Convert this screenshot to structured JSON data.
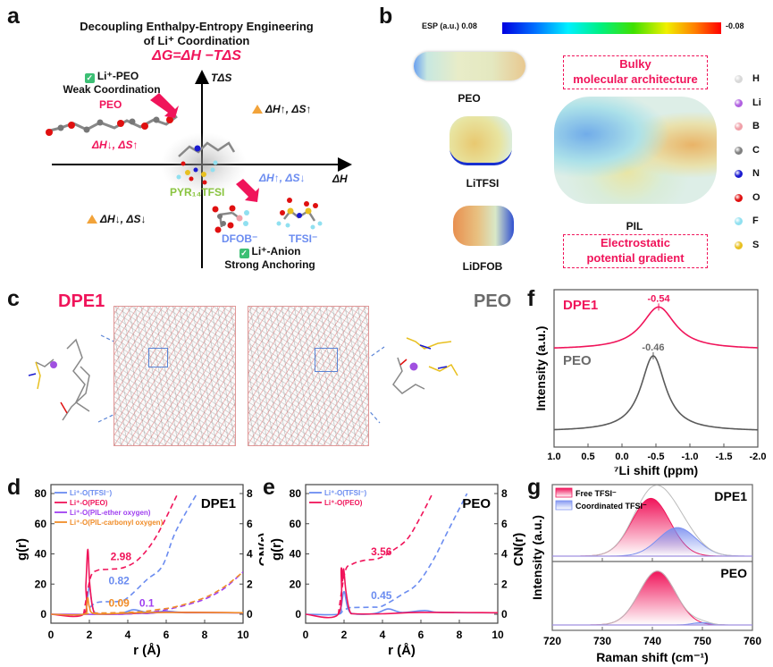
{
  "figure": {
    "panel_labels": [
      "a",
      "b",
      "c",
      "d",
      "e",
      "f",
      "g"
    ]
  },
  "panel_a": {
    "title_line1": "Decoupling Enthalpy-Entropy Engineering",
    "title_line2": "of Li⁺ Coordination",
    "equation": "ΔG=ΔH −TΔS",
    "y_axis_label": "TΔS",
    "x_axis_label": "ΔH",
    "top_left_check_label": "Li⁺-PEO",
    "top_left_sub": "Weak Coordination",
    "peo_label": "PEO",
    "q2_label": "ΔH↓, ΔS↑",
    "q1_label": "ΔH↑, ΔS↑",
    "q4_label": "ΔH↑, ΔS↓",
    "q3_label": "ΔH↓, ΔS↓",
    "center_molecule": "PYR₁₄TFSI",
    "dfob_label": "DFOB⁻",
    "tfsi_label": "TFSI⁻",
    "bottom_check_label": "Li⁺-Anion",
    "bottom_sub": "Strong Anchoring",
    "colors": {
      "magenta": "#f0145a",
      "blue": "#6b8cf0",
      "green": "#8ac440",
      "check": "#3cbf74",
      "warn": "#f2a33a"
    }
  },
  "panel_b": {
    "esp_label": "ESP (a.u.)",
    "esp_max": "0.08",
    "esp_min": "-0.08",
    "molecules": [
      "PEO",
      "LiTFSI",
      "LiDFOB",
      "PIL"
    ],
    "box_top": [
      "Bulky",
      "molecular architecture"
    ],
    "box_bottom": [
      "Electrostatic",
      "potential gradient"
    ],
    "element_legend": [
      {
        "symbol": "H",
        "color": "#d8d8d8"
      },
      {
        "symbol": "Li",
        "color": "#b060e0"
      },
      {
        "symbol": "B",
        "color": "#f0a0a8"
      },
      {
        "symbol": "C",
        "color": "#808080"
      },
      {
        "symbol": "N",
        "color": "#1a1ad0"
      },
      {
        "symbol": "O",
        "color": "#e01010"
      },
      {
        "symbol": "F",
        "color": "#90e0f0"
      },
      {
        "symbol": "S",
        "color": "#e8c020"
      }
    ]
  },
  "panel_c": {
    "left_label": "DPE1",
    "right_label": "PEO"
  },
  "chart_data": [
    {
      "id": "d",
      "type": "line",
      "title": "DPE1",
      "xlabel": "r (Å)",
      "ylabel": "g(r)",
      "y2label": "CN(r)",
      "xlim": [
        0,
        10
      ],
      "ylim": [
        0,
        80
      ],
      "y2lim": [
        0,
        8
      ],
      "xticks": [
        "0",
        "2",
        "4",
        "6",
        "8",
        "10"
      ],
      "yticks": [
        "0",
        "20",
        "40",
        "60",
        "80"
      ],
      "y2ticks": [
        "0",
        "2",
        "4",
        "6",
        "8"
      ],
      "legend": [
        "Li⁺-O(TFSI⁻)",
        "Li⁺-O(PEO)",
        "Li⁺-O(PIL-ether oxygen)",
        "Li⁺-O(PIL-carbonyl oxygen)"
      ],
      "legend_placement": "top-left",
      "series": [
        {
          "name": "Li⁺-O(TFSI⁻)",
          "color": "#6b8cf0",
          "gr": [
            [
              0,
              0
            ],
            [
              1.7,
              0
            ],
            [
              1.85,
              6
            ],
            [
              2.0,
              18
            ],
            [
              2.15,
              6
            ],
            [
              2.4,
              0.5
            ],
            [
              3.6,
              0.5
            ],
            [
              4.3,
              3
            ],
            [
              5.0,
              1.2
            ],
            [
              6.0,
              2
            ],
            [
              7,
              1.2
            ],
            [
              10,
              1
            ]
          ],
          "cn": [
            [
              1.7,
              0
            ],
            [
              2.2,
              0.65
            ],
            [
              2.6,
              0.82
            ],
            [
              3.5,
              0.85
            ],
            [
              4.0,
              1.1
            ],
            [
              5.0,
              2.3
            ],
            [
              5.8,
              3.2
            ],
            [
              6.5,
              5.5
            ],
            [
              7.6,
              8
            ]
          ]
        },
        {
          "name": "Li⁺-O(PEO)",
          "color": "#f0145a",
          "gr": [
            [
              0,
              0
            ],
            [
              1.7,
              0
            ],
            [
              1.82,
              20
            ],
            [
              1.92,
              43
            ],
            [
              2.02,
              20
            ],
            [
              2.2,
              3
            ],
            [
              2.5,
              0.3
            ],
            [
              4,
              0.3
            ],
            [
              6,
              1.3
            ],
            [
              10,
              1
            ]
          ],
          "cn": [
            [
              1.7,
              0
            ],
            [
              2.05,
              2.4
            ],
            [
              2.4,
              2.9
            ],
            [
              3.0,
              2.98
            ],
            [
              3.8,
              3.1
            ],
            [
              4.6,
              3.7
            ],
            [
              5.5,
              5.2
            ],
            [
              6.6,
              8
            ]
          ]
        },
        {
          "name": "Li⁺-O(PIL-ether oxygen)",
          "color": "#a040f0",
          "gr": [
            [
              0,
              0
            ],
            [
              3.5,
              0
            ],
            [
              4.3,
              1
            ],
            [
              5,
              0.5
            ],
            [
              6,
              1.5
            ],
            [
              7,
              1
            ],
            [
              10,
              1
            ]
          ],
          "cn": [
            [
              3.5,
              0
            ],
            [
              4.5,
              0.05
            ],
            [
              5.0,
              0.1
            ],
            [
              6,
              0.3
            ],
            [
              7,
              0.6
            ],
            [
              8,
              1.0
            ],
            [
              9,
              1.7
            ],
            [
              10,
              2.8
            ]
          ]
        },
        {
          "name": "Li⁺-O(PIL-carbonyl oxygen)",
          "color": "#f08c28",
          "gr": [
            [
              0,
              0
            ],
            [
              1.7,
              0
            ],
            [
              1.85,
              6
            ],
            [
              1.92,
              11
            ],
            [
              2.0,
              5
            ],
            [
              2.3,
              0.3
            ],
            [
              4,
              0.8
            ],
            [
              6,
              1.2
            ],
            [
              10,
              1
            ]
          ],
          "cn": [
            [
              1.7,
              0
            ],
            [
              2.3,
              0.08
            ],
            [
              3.0,
              0.09
            ],
            [
              4.5,
              0.15
            ],
            [
              5.5,
              0.3
            ],
            [
              6.5,
              0.5
            ],
            [
              8,
              1.1
            ],
            [
              9,
              1.8
            ],
            [
              10,
              2.8
            ]
          ]
        }
      ],
      "annotations": [
        {
          "text": "2.98",
          "x": 3.1,
          "y": 36,
          "color": "#f0145a"
        },
        {
          "text": "0.82",
          "x": 3.0,
          "y": 20,
          "color": "#6b8cf0"
        },
        {
          "text": "0.09",
          "x": 3.0,
          "y": 5,
          "color": "#f08c28"
        },
        {
          "text": "0.1",
          "x": 4.6,
          "y": 5,
          "color": "#a040f0"
        }
      ]
    },
    {
      "id": "e",
      "type": "line",
      "title": "PEO",
      "xlabel": "r (Å)",
      "ylabel": "g(r)",
      "y2label": "CN(r)",
      "xlim": [
        0,
        10
      ],
      "ylim": [
        0,
        80
      ],
      "y2lim": [
        0,
        8
      ],
      "xticks": [
        "0",
        "2",
        "4",
        "6",
        "8",
        "10"
      ],
      "yticks": [
        "0",
        "20",
        "40",
        "60",
        "80"
      ],
      "y2ticks": [
        "0",
        "2",
        "4",
        "6",
        "8"
      ],
      "legend": [
        "Li⁺-O(TFSI⁻)",
        "Li⁺-O(PEO)"
      ],
      "legend_placement": "top-left",
      "series": [
        {
          "name": "Li⁺-O(TFSI⁻)",
          "color": "#6b8cf0",
          "gr": [
            [
              0,
              0
            ],
            [
              1.7,
              0
            ],
            [
              1.85,
              5
            ],
            [
              2.0,
              15
            ],
            [
              2.2,
              4
            ],
            [
              2.5,
              0.3
            ],
            [
              3.6,
              0.5
            ],
            [
              4.3,
              3.5
            ],
            [
              5.0,
              1.2
            ],
            [
              6.2,
              2.5
            ],
            [
              7,
              1.2
            ],
            [
              10,
              1
            ]
          ],
          "cn": [
            [
              1.7,
              0
            ],
            [
              2.2,
              0.4
            ],
            [
              2.6,
              0.45
            ],
            [
              3.5,
              0.47
            ],
            [
              4.0,
              0.55
            ],
            [
              5.0,
              1.3
            ],
            [
              5.8,
              2.0
            ],
            [
              6.6,
              3.5
            ],
            [
              7.4,
              5.5
            ],
            [
              8.4,
              8
            ]
          ]
        },
        {
          "name": "Li⁺-O(PEO)",
          "color": "#f0145a",
          "gr": [
            [
              0,
              0
            ],
            [
              1.7,
              0
            ],
            [
              1.85,
              30
            ],
            [
              1.92,
              22
            ],
            [
              1.98,
              30
            ],
            [
              2.1,
              15
            ],
            [
              2.3,
              2
            ],
            [
              2.6,
              0.3
            ],
            [
              4,
              0.3
            ],
            [
              6,
              1.2
            ],
            [
              10,
              1
            ]
          ],
          "cn": [
            [
              1.7,
              0
            ],
            [
              2.05,
              2.8
            ],
            [
              2.4,
              3.3
            ],
            [
              3.0,
              3.56
            ],
            [
              3.8,
              3.7
            ],
            [
              4.5,
              4.2
            ],
            [
              5.3,
              5.0
            ],
            [
              6.0,
              6.5
            ],
            [
              6.6,
              8
            ]
          ]
        }
      ],
      "annotations": [
        {
          "text": "3.56",
          "x": 3.4,
          "y": 39,
          "color": "#f0145a"
        },
        {
          "text": "0.45",
          "x": 3.4,
          "y": 10,
          "color": "#6b8cf0"
        }
      ]
    },
    {
      "id": "f",
      "type": "line",
      "xlabel": "⁷Li shift (ppm)",
      "ylabel": "Intensity (a.u.)",
      "xlim": [
        1.0,
        -2.0
      ],
      "xticks": [
        "1.0",
        "0.5",
        "0.0",
        "-0.5",
        "-1.0",
        "-1.5",
        "-2.0"
      ],
      "series": [
        {
          "name": "DPE1",
          "color": "#f0145a",
          "peak": -0.54,
          "width": 0.3,
          "height": 0.27,
          "baseline": 0.62
        },
        {
          "name": "PEO",
          "color": "#5a5a5a",
          "peak": -0.46,
          "width": 0.22,
          "height": 0.48,
          "baseline": 0.1
        }
      ],
      "annotations": [
        {
          "text": "-0.54",
          "series": "DPE1",
          "color": "#f0145a"
        },
        {
          "text": "-0.46",
          "series": "PEO",
          "color": "#6b6b6b"
        }
      ]
    },
    {
      "id": "g",
      "type": "area",
      "xlabel": "Raman shift (cm⁻¹)",
      "ylabel": "Intensity (a.u.)",
      "xlim": [
        720,
        760
      ],
      "xticks": [
        "720",
        "730",
        "740",
        "750",
        "760"
      ],
      "legend": [
        "Free TFSI⁻",
        "Coordinated TFSI⁻"
      ],
      "legend_placement": "top-left",
      "panels": [
        {
          "name": "DPE1",
          "peaks": [
            {
              "label": "Free TFSI⁻",
              "center": 739.7,
              "sigma": 3.8,
              "height": 0.85,
              "color": "#f0145a"
            },
            {
              "label": "Coordinated TFSI⁻",
              "center": 745.0,
              "sigma": 3.8,
              "height": 0.42,
              "color": "#7a8ff0"
            }
          ]
        },
        {
          "name": "PEO",
          "peaks": [
            {
              "label": "Free TFSI⁻",
              "center": 741.0,
              "sigma": 3.6,
              "height": 0.9,
              "color": "#f0145a"
            },
            {
              "label": "Coordinated TFSI⁻",
              "center": 749.8,
              "sigma": 1.8,
              "height": 0.04,
              "color": "#7a8ff0"
            }
          ]
        }
      ]
    }
  ]
}
